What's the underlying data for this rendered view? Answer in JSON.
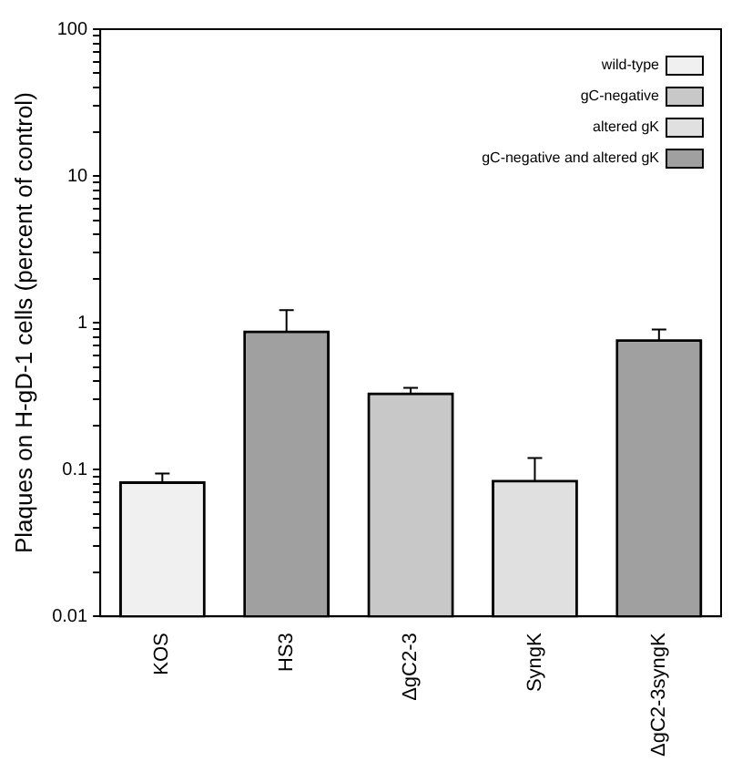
{
  "chart_data": {
    "type": "bar",
    "ylabel": "Plaques on H-gD-1 cells (percent of control)",
    "categories": [
      "KOS",
      "HS3",
      "ΔgC2-3",
      "SyngK",
      "ΔgC2-3syngK"
    ],
    "series": [
      {
        "name": "wild-type",
        "color": "#f0f0f0",
        "values": [
          0.082,
          null,
          null,
          null,
          null
        ],
        "errors": [
          [
            0.082,
            0.094
          ],
          null,
          null,
          null,
          null
        ]
      },
      {
        "name": "gC-negative",
        "color": "#c8c8c8",
        "values": [
          null,
          null,
          0.33,
          null,
          null
        ],
        "errors": [
          null,
          null,
          [
            0.33,
            0.36
          ],
          null,
          null
        ]
      },
      {
        "name": "altered gK",
        "color": "#e0e0e0",
        "values": [
          null,
          null,
          null,
          0.084,
          null
        ],
        "errors": [
          null,
          null,
          null,
          [
            0.084,
            0.12
          ],
          null
        ]
      },
      {
        "name": "gC-negative and altered gK",
        "color": "#a0a0a0",
        "values": [
          null,
          0.87,
          null,
          null,
          0.76
        ],
        "errors": [
          null,
          [
            0.87,
            1.22
          ],
          null,
          null,
          [
            0.76,
            0.9
          ]
        ]
      }
    ],
    "log": "y",
    "ylim": [
      0.01,
      100
    ],
    "yticks": [
      0.01,
      {
        "value": 0.02,
        "label": null
      },
      {
        "value": 0.03,
        "label": null
      },
      {
        "value": 0.04,
        "label": null
      },
      {
        "value": 0.05,
        "label": null
      },
      {
        "value": 0.06,
        "label": null
      },
      {
        "value": 0.07,
        "label": null
      },
      {
        "value": 0.08,
        "label": null
      },
      {
        "value": 0.09,
        "label": null
      },
      0.1,
      {
        "value": 0.2,
        "label": null
      },
      {
        "value": 0.3,
        "label": null
      },
      {
        "value": 0.4,
        "label": null
      },
      {
        "value": 0.5,
        "label": null
      },
      {
        "value": 0.6,
        "label": null
      },
      {
        "value": 0.7,
        "label": null
      },
      {
        "value": 0.8,
        "label": null
      },
      {
        "value": 0.9,
        "label": null
      },
      1,
      {
        "value": 2,
        "label": null
      },
      {
        "value": 3,
        "label": null
      },
      {
        "value": 4,
        "label": null
      },
      {
        "value": 5,
        "label": null
      },
      {
        "value": 6,
        "label": null
      },
      {
        "value": 7,
        "label": null
      },
      {
        "value": 8,
        "label": null
      },
      {
        "value": 9,
        "label": null
      },
      10,
      {
        "value": 20,
        "label": null
      },
      {
        "value": 30,
        "label": null
      },
      {
        "value": 40,
        "label": null
      },
      {
        "value": 50,
        "label": null
      },
      {
        "value": 60,
        "label": null
      },
      {
        "value": 70,
        "label": null
      },
      {
        "value": 80,
        "label": null
      },
      {
        "value": 90,
        "label": null
      },
      100
    ],
    "grid": false,
    "legend": "top right"
  }
}
